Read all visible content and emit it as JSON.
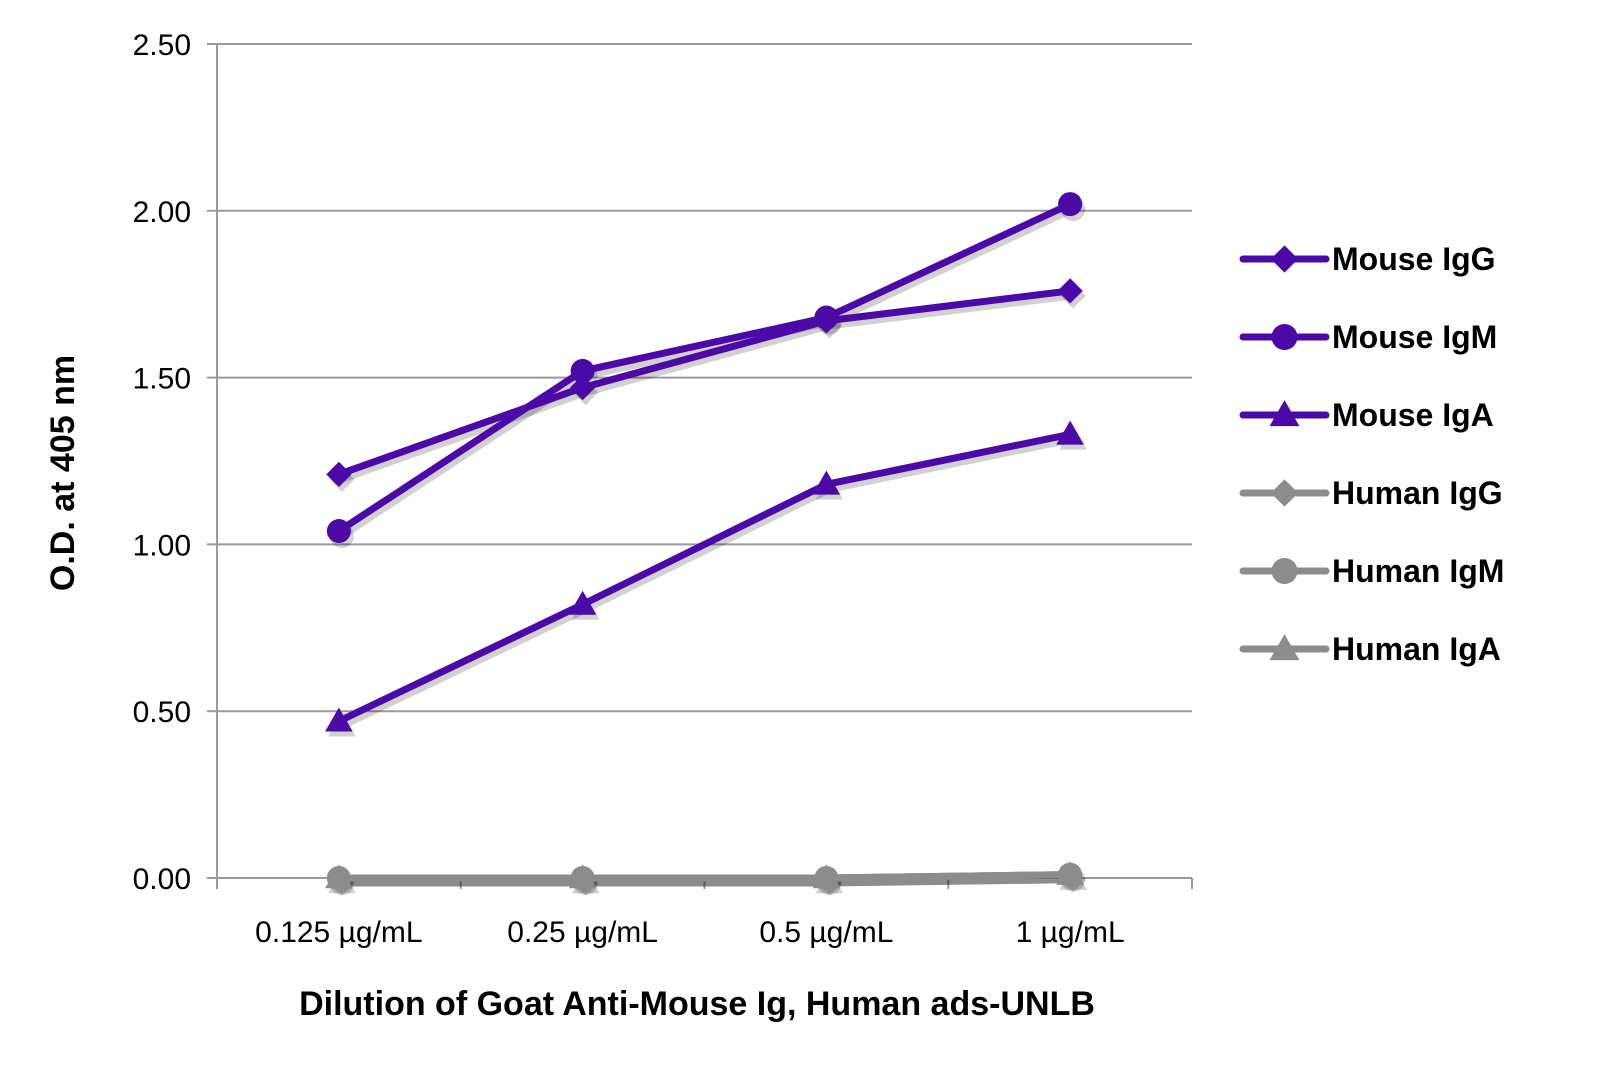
{
  "chart_data": {
    "type": "line",
    "title": "",
    "xlabel": "Dilution of Goat Anti-Mouse Ig, Human ads-UNLB",
    "ylabel": "O.D. at 405 nm",
    "categories": [
      "0.125 µg/mL",
      "0.25 µg/mL",
      "0.5 µg/mL",
      "1 µg/mL"
    ],
    "ylim": [
      0,
      2.5
    ],
    "yticks": [
      "0.00",
      "0.50",
      "1.00",
      "1.50",
      "2.00",
      "2.50"
    ],
    "ytick_values": [
      0,
      0.5,
      1.0,
      1.5,
      2.0,
      2.5
    ],
    "grid": "horizontal",
    "legend_position": "right",
    "series": [
      {
        "name": "Mouse IgG",
        "marker": "diamond",
        "color": "#4B0AA8",
        "values": [
          1.21,
          1.47,
          1.67,
          1.76
        ]
      },
      {
        "name": "Mouse IgM",
        "marker": "circle",
        "color": "#4B0AA8",
        "values": [
          1.04,
          1.52,
          1.68,
          2.02
        ]
      },
      {
        "name": "Mouse IgA",
        "marker": "triangle",
        "color": "#4B0AA8",
        "values": [
          0.47,
          0.82,
          1.18,
          1.33
        ]
      },
      {
        "name": "Human IgG",
        "marker": "diamond",
        "color": "#8C8C8C",
        "values": [
          0.0,
          0.0,
          0.0,
          0.01
        ]
      },
      {
        "name": "Human IgM",
        "marker": "circle",
        "color": "#8C8C8C",
        "values": [
          0.0,
          0.0,
          0.0,
          0.01
        ]
      },
      {
        "name": "Human IgA",
        "marker": "triangle",
        "color": "#8C8C8C",
        "values": [
          0.0,
          0.0,
          0.0,
          0.01
        ]
      }
    ]
  }
}
